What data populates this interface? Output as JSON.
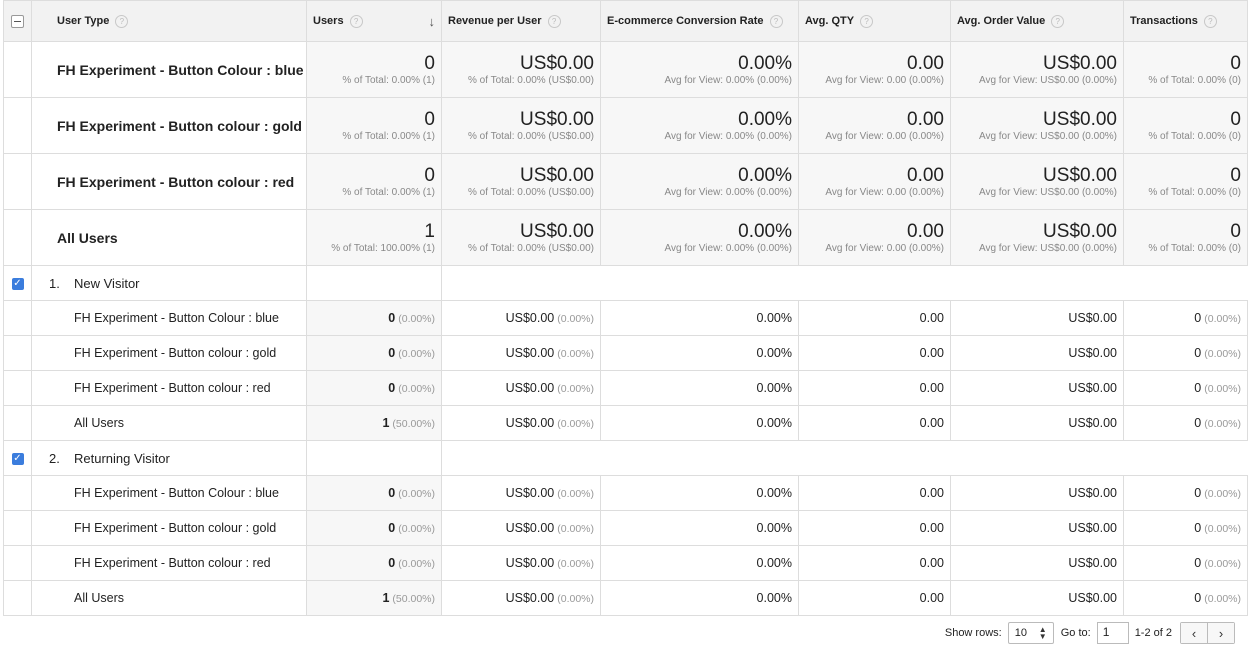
{
  "headers": {
    "user_type": "User Type",
    "users": "Users",
    "revenue_per_user": "Revenue per User",
    "ecommerce_conversion_rate": "E-commerce Conversion Rate",
    "avg_qty": "Avg. QTY",
    "avg_order_value": "Avg. Order Value",
    "transactions": "Transactions",
    "help": "?",
    "sort_icon": "arrow-down-icon"
  },
  "summary": [
    {
      "label": "FH Experiment - Button Colour : blue",
      "users": "0",
      "users_sub": "% of Total: 0.00% (1)",
      "rpu": "US$0.00",
      "rpu_sub": "% of Total: 0.00% (US$0.00)",
      "ecr": "0.00%",
      "ecr_sub": "Avg for View: 0.00% (0.00%)",
      "qty": "0.00",
      "qty_sub": "Avg for View: 0.00 (0.00%)",
      "aov": "US$0.00",
      "aov_sub": "Avg for View: US$0.00 (0.00%)",
      "tx": "0",
      "tx_sub": "% of Total: 0.00% (0)"
    },
    {
      "label": "FH Experiment - Button colour : gold",
      "users": "0",
      "users_sub": "% of Total: 0.00% (1)",
      "rpu": "US$0.00",
      "rpu_sub": "% of Total: 0.00% (US$0.00)",
      "ecr": "0.00%",
      "ecr_sub": "Avg for View: 0.00% (0.00%)",
      "qty": "0.00",
      "qty_sub": "Avg for View: 0.00 (0.00%)",
      "aov": "US$0.00",
      "aov_sub": "Avg for View: US$0.00 (0.00%)",
      "tx": "0",
      "tx_sub": "% of Total: 0.00% (0)"
    },
    {
      "label": "FH Experiment - Button colour : red",
      "users": "0",
      "users_sub": "% of Total: 0.00% (1)",
      "rpu": "US$0.00",
      "rpu_sub": "% of Total: 0.00% (US$0.00)",
      "ecr": "0.00%",
      "ecr_sub": "Avg for View: 0.00% (0.00%)",
      "qty": "0.00",
      "qty_sub": "Avg for View: 0.00 (0.00%)",
      "aov": "US$0.00",
      "aov_sub": "Avg for View: US$0.00 (0.00%)",
      "tx": "0",
      "tx_sub": "% of Total: 0.00% (0)"
    },
    {
      "label": "All Users",
      "users": "1",
      "users_sub": "% of Total: 100.00% (1)",
      "rpu": "US$0.00",
      "rpu_sub": "% of Total: 0.00% (US$0.00)",
      "ecr": "0.00%",
      "ecr_sub": "Avg for View: 0.00% (0.00%)",
      "qty": "0.00",
      "qty_sub": "Avg for View: 0.00 (0.00%)",
      "aov": "US$0.00",
      "aov_sub": "Avg for View: US$0.00 (0.00%)",
      "tx": "0",
      "tx_sub": "% of Total: 0.00% (0)"
    }
  ],
  "groups": [
    {
      "num": "1.",
      "label": "New Visitor",
      "checked": "✓",
      "rows": [
        {
          "label": "FH Experiment - Button Colour : blue",
          "users": "0",
          "users_pct": "(0.00%)",
          "rpu": "US$0.00",
          "rpu_pct": "(0.00%)",
          "ecr": "0.00%",
          "qty": "0.00",
          "aov": "US$0.00",
          "tx": "0",
          "tx_pct": "(0.00%)"
        },
        {
          "label": "FH Experiment - Button colour : gold",
          "users": "0",
          "users_pct": "(0.00%)",
          "rpu": "US$0.00",
          "rpu_pct": "(0.00%)",
          "ecr": "0.00%",
          "qty": "0.00",
          "aov": "US$0.00",
          "tx": "0",
          "tx_pct": "(0.00%)"
        },
        {
          "label": "FH Experiment - Button colour : red",
          "users": "0",
          "users_pct": "(0.00%)",
          "rpu": "US$0.00",
          "rpu_pct": "(0.00%)",
          "ecr": "0.00%",
          "qty": "0.00",
          "aov": "US$0.00",
          "tx": "0",
          "tx_pct": "(0.00%)"
        },
        {
          "label": "All Users",
          "users": "1",
          "users_pct": "(50.00%)",
          "rpu": "US$0.00",
          "rpu_pct": "(0.00%)",
          "ecr": "0.00%",
          "qty": "0.00",
          "aov": "US$0.00",
          "tx": "0",
          "tx_pct": "(0.00%)"
        }
      ]
    },
    {
      "num": "2.",
      "label": "Returning Visitor",
      "checked": "✓",
      "rows": [
        {
          "label": "FH Experiment - Button Colour : blue",
          "users": "0",
          "users_pct": "(0.00%)",
          "rpu": "US$0.00",
          "rpu_pct": "(0.00%)",
          "ecr": "0.00%",
          "qty": "0.00",
          "aov": "US$0.00",
          "tx": "0",
          "tx_pct": "(0.00%)"
        },
        {
          "label": "FH Experiment - Button colour : gold",
          "users": "0",
          "users_pct": "(0.00%)",
          "rpu": "US$0.00",
          "rpu_pct": "(0.00%)",
          "ecr": "0.00%",
          "qty": "0.00",
          "aov": "US$0.00",
          "tx": "0",
          "tx_pct": "(0.00%)"
        },
        {
          "label": "FH Experiment - Button colour : red",
          "users": "0",
          "users_pct": "(0.00%)",
          "rpu": "US$0.00",
          "rpu_pct": "(0.00%)",
          "ecr": "0.00%",
          "qty": "0.00",
          "aov": "US$0.00",
          "tx": "0",
          "tx_pct": "(0.00%)"
        },
        {
          "label": "All Users",
          "users": "1",
          "users_pct": "(50.00%)",
          "rpu": "US$0.00",
          "rpu_pct": "(0.00%)",
          "ecr": "0.00%",
          "qty": "0.00",
          "aov": "US$0.00",
          "tx": "0",
          "tx_pct": "(0.00%)"
        }
      ]
    }
  ],
  "pagination": {
    "show_rows_label": "Show rows:",
    "rows_value": "10",
    "goto_label": "Go to:",
    "goto_value": "1",
    "range": "1-2 of 2",
    "prev_icon": "chevron-left-icon",
    "next_icon": "chevron-right-icon",
    "prev_glyph": "‹",
    "next_glyph": "›"
  },
  "colors": {
    "checkbox": "#3b7ddd",
    "header_bg": "#f2f2f2",
    "summary_bg": "#f7f7f7",
    "border": "#dddddd"
  }
}
